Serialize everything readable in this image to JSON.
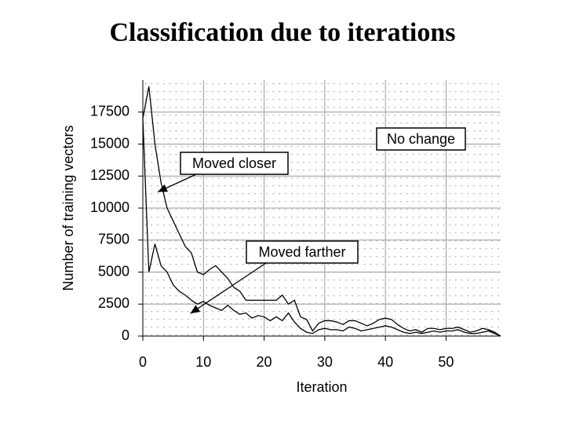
{
  "chart_data": {
    "type": "line",
    "title": "Classification due to iterations",
    "x_label": "Iteration",
    "y_label": "Number of training vectors",
    "x": [
      0,
      1,
      2,
      3,
      4,
      5,
      6,
      7,
      8,
      9,
      10,
      11,
      12,
      13,
      14,
      15,
      16,
      17,
      18,
      19,
      20,
      21,
      22,
      23,
      24,
      25,
      26,
      27,
      28,
      29,
      30,
      31,
      32,
      33,
      34,
      35,
      36,
      37,
      38,
      39,
      40,
      41,
      42,
      43,
      44,
      45,
      46,
      47,
      48,
      49,
      50,
      51,
      52,
      53,
      54,
      55,
      56,
      57,
      58,
      59
    ],
    "series": [
      {
        "name": "Moved closer",
        "color": "#000000",
        "values": [
          17000,
          19500,
          15000,
          12000,
          10000,
          9000,
          8000,
          7000,
          6500,
          5000,
          4800,
          5200,
          5500,
          5000,
          4500,
          3800,
          3500,
          2800,
          2800,
          2800,
          2800,
          2800,
          2800,
          3200,
          2500,
          2800,
          1500,
          1300,
          400,
          1000,
          1200,
          1200,
          1100,
          900,
          1200,
          1200,
          1000,
          800,
          1000,
          1300,
          1400,
          1300,
          900,
          600,
          400,
          500,
          300,
          600,
          600,
          500,
          600,
          600,
          700,
          500,
          300,
          400,
          600,
          500,
          300,
          0
        ]
      },
      {
        "name": "Moved farther",
        "color": "#000000",
        "values": [
          17000,
          5000,
          7200,
          5500,
          5000,
          4000,
          3500,
          3200,
          2800,
          2500,
          2700,
          2400,
          2200,
          2000,
          2400,
          2000,
          1700,
          1800,
          1400,
          1600,
          1500,
          1200,
          1500,
          1200,
          1800,
          1100,
          600,
          300,
          200,
          500,
          600,
          500,
          500,
          400,
          700,
          600,
          400,
          500,
          600,
          700,
          800,
          700,
          500,
          300,
          200,
          300,
          200,
          300,
          400,
          300,
          400,
          400,
          500,
          300,
          200,
          200,
          300,
          400,
          200,
          0
        ]
      }
    ],
    "annotations": [
      "No change"
    ],
    "xlim": [
      0,
      59
    ],
    "xticks": [
      0,
      10,
      20,
      30,
      40,
      50
    ],
    "ylim": [
      0,
      20000
    ],
    "yticks": [
      0,
      2500,
      5000,
      7500,
      10000,
      12500,
      15000,
      17500
    ],
    "grid": true
  }
}
